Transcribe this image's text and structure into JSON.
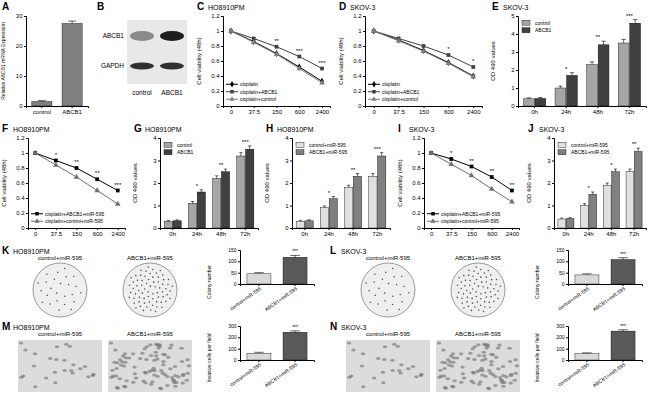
{
  "chart_data": [
    {
      "type": "bar",
      "panel": "A",
      "categories": [
        "control",
        "ABCB1"
      ],
      "values": [
        1.5,
        27.5
      ],
      "errors": [
        0.3,
        0.8
      ],
      "color": "#7f7f7f",
      "ylabel": "Relative ABCB1 mRNA Expression",
      "ylim": [
        0,
        30
      ],
      "yticks": [
        0,
        10,
        20,
        30
      ]
    },
    {
      "type": "line",
      "panel": "C",
      "title": "HO8910PM",
      "categories": [
        "0",
        "37.5",
        "150",
        "600",
        "2400"
      ],
      "ylabel": "Cell viability (48h)",
      "ylim": [
        0,
        1.2
      ],
      "yticks": [
        0,
        0.2,
        0.4,
        0.6,
        0.8,
        1,
        1.2
      ],
      "legend": "lower left",
      "series": [
        {
          "name": "cisplatin",
          "color": "#000000",
          "marker": "diamond",
          "values": [
            1,
            0.86,
            0.7,
            0.52,
            0.33
          ]
        },
        {
          "name": "cisplatin+ABCB1",
          "color": "#404040",
          "marker": "square",
          "values": [
            1,
            0.9,
            0.79,
            0.66,
            0.5
          ]
        },
        {
          "name": "cisplatin+control",
          "color": "#808080",
          "marker": "triangle",
          "values": [
            1,
            0.85,
            0.69,
            0.5,
            0.31
          ]
        }
      ],
      "annotations": [
        null,
        null,
        "**",
        "***",
        "***"
      ]
    },
    {
      "type": "line",
      "panel": "D",
      "title": "SKOV-3",
      "categories": [
        "0",
        "37.5",
        "150",
        "600",
        "2400"
      ],
      "ylabel": "Cell viability (48h)",
      "ylim": [
        0,
        1.2
      ],
      "yticks": [
        0,
        0.2,
        0.4,
        0.6,
        0.8,
        1,
        1.2
      ],
      "legend": "lower left",
      "series": [
        {
          "name": "cisplatin",
          "color": "#000000",
          "marker": "diamond",
          "values": [
            1,
            0.88,
            0.74,
            0.58,
            0.4
          ]
        },
        {
          "name": "cisplatin+ABCB1",
          "color": "#404040",
          "marker": "square",
          "values": [
            1,
            0.9,
            0.8,
            0.68,
            0.52
          ]
        },
        {
          "name": "cisplatin+control",
          "color": "#808080",
          "marker": "triangle",
          "values": [
            1,
            0.87,
            0.73,
            0.57,
            0.39
          ]
        }
      ],
      "annotations": [
        null,
        null,
        null,
        "*",
        "*"
      ]
    },
    {
      "type": "bar",
      "panel": "E",
      "title": "SKOV-3",
      "categories": [
        "0h",
        "24h",
        "48h",
        "72h"
      ],
      "ylabel": "OD 490 values",
      "ylim": [
        0,
        5
      ],
      "yticks": [
        0,
        1,
        2,
        3,
        4,
        5
      ],
      "legend": "upper left",
      "series": [
        {
          "name": "control",
          "color": "#a6a6a6",
          "values": [
            0.4,
            1.0,
            2.3,
            3.5
          ],
          "errors": [
            0.05,
            0.1,
            0.15,
            0.2
          ]
        },
        {
          "name": "ABCB1",
          "color": "#404040",
          "values": [
            0.42,
            1.7,
            3.4,
            4.6
          ],
          "errors": [
            0.05,
            0.15,
            0.2,
            0.2
          ]
        }
      ],
      "annotations": [
        null,
        "*",
        "**",
        "***"
      ]
    },
    {
      "type": "line",
      "panel": "F",
      "title": "HO8910PM",
      "categories": [
        "0",
        "37.5",
        "150",
        "600",
        "2400"
      ],
      "ylabel": "Cell viability (48h)",
      "ylim": [
        0,
        1.2
      ],
      "yticks": [
        0,
        0.2,
        0.4,
        0.6,
        0.8,
        1,
        1.2
      ],
      "legend": "lower left",
      "series": [
        {
          "name": "cisplatin+ABCB1+miR-595",
          "color": "#000000",
          "marker": "square",
          "values": [
            1,
            0.9,
            0.8,
            0.65,
            0.5
          ]
        },
        {
          "name": "cisplatin+control+miR-595",
          "color": "#707070",
          "marker": "triangle",
          "values": [
            1,
            0.84,
            0.68,
            0.5,
            0.32
          ]
        }
      ],
      "annotations": [
        null,
        "*",
        "**",
        "**",
        "***"
      ]
    },
    {
      "type": "bar",
      "panel": "G",
      "title": "HO8910PM",
      "categories": [
        "0h",
        "24h",
        "48h",
        "72h"
      ],
      "ylabel": "OD 490 values",
      "ylim": [
        0,
        4
      ],
      "yticks": [
        0,
        1,
        2,
        3,
        4
      ],
      "legend": "upper left",
      "series": [
        {
          "name": "control",
          "color": "#a6a6a6",
          "values": [
            0.3,
            1.1,
            2.2,
            3.2
          ],
          "errors": [
            0.04,
            0.08,
            0.12,
            0.15
          ]
        },
        {
          "name": "ABCB1",
          "color": "#404040",
          "values": [
            0.32,
            1.6,
            2.5,
            3.5
          ],
          "errors": [
            0.04,
            0.1,
            0.12,
            0.15
          ]
        }
      ],
      "annotations": [
        null,
        "*",
        "**",
        "***"
      ]
    },
    {
      "type": "bar",
      "panel": "H",
      "title": "HO8910PM",
      "categories": [
        "0h",
        "24h",
        "48h",
        "72h"
      ],
      "ylabel": "OD 490 values",
      "ylim": [
        0,
        4
      ],
      "yticks": [
        0,
        1,
        2,
        3,
        4
      ],
      "legend": "upper left",
      "series": [
        {
          "name": "control+miR-595",
          "color": "#e0e0e0",
          "values": [
            0.3,
            0.9,
            1.8,
            2.3
          ],
          "errors": [
            0.04,
            0.08,
            0.1,
            0.12
          ]
        },
        {
          "name": "ABCB1+miR-595",
          "color": "#808080",
          "values": [
            0.32,
            1.3,
            2.3,
            3.2
          ],
          "errors": [
            0.04,
            0.1,
            0.12,
            0.15
          ]
        }
      ],
      "annotations": [
        null,
        "*",
        "**",
        "***"
      ]
    },
    {
      "type": "line",
      "panel": "I",
      "title": "SKOV-3",
      "categories": [
        "0",
        "37.5",
        "150",
        "600",
        "2400"
      ],
      "ylabel": "Cell viability (48h)",
      "ylim": [
        0,
        1.2
      ],
      "yticks": [
        0,
        0.2,
        0.4,
        0.6,
        0.8,
        1,
        1.2
      ],
      "legend": "lower left",
      "series": [
        {
          "name": "cisplatin+ABCB1+miR-595",
          "color": "#000000",
          "marker": "square",
          "values": [
            1,
            0.92,
            0.82,
            0.68,
            0.5
          ]
        },
        {
          "name": "cisplatin+control+miR-595",
          "color": "#707070",
          "marker": "triangle",
          "values": [
            1,
            0.85,
            0.7,
            0.52,
            0.35
          ]
        }
      ],
      "annotations": [
        null,
        "*",
        "**",
        "**",
        "**"
      ]
    },
    {
      "type": "bar",
      "panel": "J",
      "title": "SKOV-3",
      "categories": [
        "0h",
        "24h",
        "48h",
        "72h"
      ],
      "ylabel": "OD 490 values",
      "ylim": [
        0,
        4
      ],
      "yticks": [
        0,
        1,
        2,
        3,
        4
      ],
      "legend": "upper left",
      "series": [
        {
          "name": "control+miR-595",
          "color": "#e0e0e0",
          "values": [
            0.4,
            1.0,
            1.9,
            2.5
          ],
          "errors": [
            0.04,
            0.08,
            0.1,
            0.12
          ]
        },
        {
          "name": "ABCB1+miR-595",
          "color": "#808080",
          "values": [
            0.42,
            1.5,
            2.5,
            3.4
          ],
          "errors": [
            0.04,
            0.1,
            0.12,
            0.15
          ]
        }
      ],
      "annotations": [
        null,
        "*",
        "*",
        "**"
      ]
    },
    {
      "type": "bar",
      "panel": "K",
      "title": "HO8910PM",
      "image_labels": [
        "control+miR-595",
        "ABCB1+miR-595"
      ],
      "categories": [
        "control+miR-595",
        "ABCB1+miR-595"
      ],
      "values": [
        45,
        118
      ],
      "errors": [
        5,
        8
      ],
      "colors": [
        "#d9d9d9",
        "#595959"
      ],
      "ylabel": "Colony number",
      "ylim": [
        0,
        150
      ],
      "yticks": [
        0,
        50,
        100,
        150
      ],
      "annotations": [
        null,
        "***"
      ]
    },
    {
      "type": "bar",
      "panel": "L",
      "title": "SKOV-3",
      "image_labels": [
        "control+miR-595",
        "ABCB1+miR-595"
      ],
      "categories": [
        "control+miR-595",
        "ABCB1+miR-595"
      ],
      "values": [
        40,
        108
      ],
      "errors": [
        5,
        8
      ],
      "colors": [
        "#d9d9d9",
        "#595959"
      ],
      "ylabel": "Colony number",
      "ylim": [
        0,
        150
      ],
      "yticks": [
        0,
        50,
        100,
        150
      ],
      "annotations": [
        null,
        "***"
      ]
    },
    {
      "type": "bar",
      "panel": "M",
      "title": "HO8910PM",
      "image_labels": [
        "control+miR-595",
        "ABCB1+miR-595"
      ],
      "categories": [
        "control+miR-595",
        "ABCB1+miR-595"
      ],
      "values": [
        60,
        245
      ],
      "errors": [
        8,
        12
      ],
      "colors": [
        "#d9d9d9",
        "#595959"
      ],
      "ylabel": "Invasive cells per field",
      "ylim": [
        0,
        300
      ],
      "yticks": [
        0,
        100,
        200,
        300
      ],
      "annotations": [
        null,
        "***"
      ]
    },
    {
      "type": "bar",
      "panel": "N",
      "title": "SKOV-3",
      "image_labels": [
        "control+miR-595",
        "ABCB1+miR-595"
      ],
      "categories": [
        "control+miR-595",
        "ABCB1+miR-595"
      ],
      "values": [
        55,
        255
      ],
      "errors": [
        8,
        12
      ],
      "colors": [
        "#d9d9d9",
        "#595959"
      ],
      "ylabel": "Invasive cells per field",
      "ylim": [
        0,
        300
      ],
      "yticks": [
        0,
        100,
        200,
        300
      ],
      "annotations": [
        null,
        "***"
      ]
    }
  ],
  "blot": {
    "panel": "B",
    "rows": [
      "ABCB1",
      "GAPDH"
    ],
    "lanes": [
      "control",
      "ABCB1"
    ]
  }
}
